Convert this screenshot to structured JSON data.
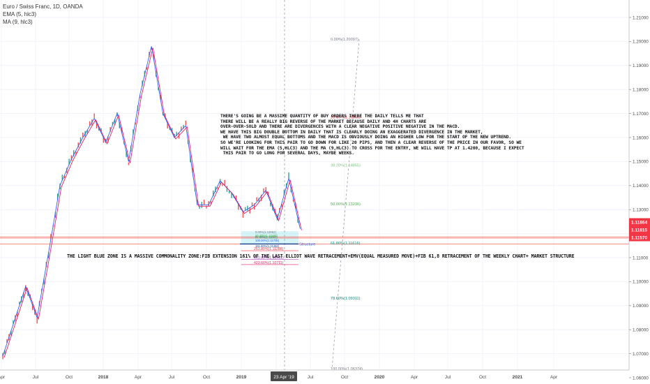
{
  "legend": {
    "symbol": "Euro / Swiss Franc, 1D, OANDA",
    "ema": "EMA (5, hlc3)",
    "ma": "MA (9, hlc3)"
  },
  "notes": {
    "analysis": "THERE'S GOING BE A MASSIME QUANTITY OF BUY ORDERS THERE THE DAILY TELLS ME THAT\nTHERE WILL BE A REALLY BIG REVERSE OF THE MARKET BECAUSE DAILY AND 4H CHARTS ARE\nOVER-OVER-SOLD AND THERE ARE DIVERGENCES WITH A CLEAR NEGATIVE POSITIVE NEGATIVE IN THE MACD.\nWE HAVE THIS BIG DOUBLE BOTTOM IN DAILY THAT IS CLEARLY DOING AN EXAGGERATED DIVERGENCE IN THE MARKET,\n WE HAVE TWO ALMOST EQUAL BOTTOMS AND THE MACD IS OBVIOUSLY DOING AN HIGHER LOW FOR THE START OF THE NEW UPTREND.\nSO WE'RE LOOKING FOR THIS PAIR TO GO DOWN FOR LIKE 20 PIPS, AND THEN A CLEAR REVERSE OF THE PRICE IN OUR FAVOR, SO WE\nWILL WAIT FOR THE EMA (5,HLC3) AND THE MA (9,HLC3) TO CROSS FOR THE ENTRY, WE WILL HAVE TP AT 1.4200, BECAUSE I EXPECT\n THIS PAIR TO GO LONG FOR SEVERAL DAYS, MAYBE WEEKS.",
    "commonality": "THE LIGHT BLUE ZONE IS A MASSIVE COMMONALITY ZONE:FIB EXTENSION 161% OF THE LAST ELLIOT WAVE RETRACEMENT+EMV(EQUAL MEASURED MOVE)+FIB 61,8 RETRACEMENT OF THE WEEKLY CHART+ MARKET STRUCTURE",
    "structure": "Structure"
  },
  "colors": {
    "up": "#26a69a",
    "down": "#ef5350",
    "ema": "#2962ff",
    "ma": "#e91e63",
    "level_line": "#f44336",
    "zone": "#b2ebf2",
    "vline": "#9e9e9e"
  },
  "chart_data": {
    "type": "line",
    "title": "Euro / Swiss Franc, 1D, OANDA",
    "ylim": [
      1.055,
      1.215
    ],
    "y_ticks": [
      "1.06000",
      "1.07000",
      "1.08000",
      "1.09000",
      "1.10000",
      "1.11000",
      "1.12000",
      "1.13000",
      "1.14000",
      "1.15000",
      "1.16000",
      "1.17000",
      "1.18000",
      "1.19000",
      "1.20000",
      "1.21000"
    ],
    "x_ticks": [
      "Apr",
      "Jul",
      "Oct",
      "2018",
      "Apr",
      "Jul",
      "Oct",
      "2019",
      "Apr",
      "Jul",
      "Oct",
      "2020",
      "Apr",
      "Jul",
      "Oct",
      "2021",
      "Apr"
    ],
    "x_ticks_bold": [
      "2018",
      "2019",
      "2020",
      "2021"
    ],
    "cursor_date_label": "23 Apr '19",
    "series": [
      {
        "name": "Euro / Swiss Franc",
        "x": [
          "2017-03",
          "2017-05",
          "2017-06",
          "2017-07",
          "2017-08",
          "2017-09",
          "2017-10",
          "2017-11",
          "2017-12",
          "2018-01",
          "2018-02",
          "2018-03",
          "2018-04",
          "2018-05",
          "2018-06",
          "2018-07",
          "2018-08",
          "2018-09",
          "2018-10",
          "2018-11",
          "2018-12",
          "2019-01",
          "2019-02",
          "2019-03",
          "2019-04",
          "2019-05"
        ],
        "values": [
          1.069,
          1.098,
          1.085,
          1.112,
          1.14,
          1.151,
          1.16,
          1.168,
          1.158,
          1.17,
          1.15,
          1.178,
          1.198,
          1.17,
          1.16,
          1.165,
          1.132,
          1.132,
          1.142,
          1.137,
          1.129,
          1.132,
          1.138,
          1.126,
          1.143,
          1.122
        ]
      },
      {
        "name": "EMA (5, hlc3)"
      },
      {
        "name": "MA (9, hlc3)"
      }
    ],
    "price_labels": [
      {
        "text": "1.11864",
        "value": 1.11864,
        "color": "#f23645"
      },
      {
        "text": "1.11815",
        "value": 1.11815,
        "color": "#f23645"
      },
      {
        "text": "1.11570",
        "value": 1.1157,
        "color": "#f23645"
      }
    ],
    "fib_levels": [
      {
        "label": "0.00%(1.20097)",
        "value": 1.20097,
        "color": "#787b86"
      },
      {
        "label": "23.60%(1.16858)",
        "value": 1.16858,
        "color": "#f23645"
      },
      {
        "label": "38.20%(1.14855)",
        "value": 1.14855,
        "color": "#81c784"
      },
      {
        "label": "50.00%(1.13236)",
        "value": 1.13236,
        "color": "#4caf50"
      },
      {
        "label": "61.80%(1.11616)",
        "value": 1.11616,
        "color": "#089981"
      },
      {
        "label": "78.60%(1.09311)",
        "value": 1.09311,
        "color": "#00897b"
      },
      {
        "label": "100.00%(1.06374)",
        "value": 1.06374,
        "color": "#787b86"
      }
    ],
    "ext_levels": [
      {
        "label": "261.80%(1.11288)",
        "value": 1.11288,
        "color": "#f23645"
      },
      {
        "label": "361.80%(1.10931)",
        "value": 1.10931,
        "color": "#9c27b0"
      },
      {
        "label": "423.60%(1.10711)",
        "value": 1.10711,
        "color": "#e91e63"
      }
    ],
    "ext_labels_small": [
      "0.00%(1.12062)",
      "38.20%(1.11926)",
      "50.00%(1.11884)",
      "61.80%(1.11842)",
      "100.00%(1.11705)",
      "161.80%(1.11484)"
    ]
  }
}
